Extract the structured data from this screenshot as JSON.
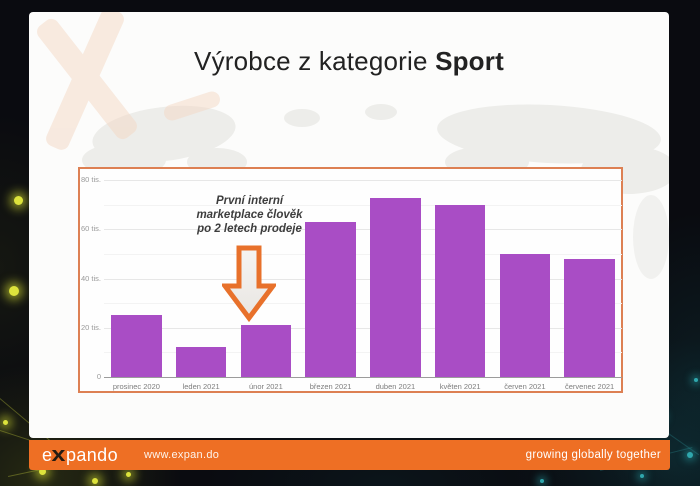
{
  "colors": {
    "footer_orange": "#ee6f24",
    "chart_border": "#dd8053",
    "bar": "#a94dc5",
    "arrow_outline": "#e8712b",
    "arrow_fill": "#f1efec"
  },
  "slide": {
    "title_regular": "Výrobce z kategorie ",
    "title_bold": "Sport"
  },
  "chart_data": {
    "type": "bar",
    "title": "Výrobce z kategorie Sport",
    "unit": "tis. (thousands)",
    "categories": [
      "prosinec 2020",
      "leden 2021",
      "únor 2021",
      "březen 2021",
      "duben 2021",
      "květen 2021",
      "červen 2021",
      "červenec 2021"
    ],
    "values": [
      25,
      12,
      21,
      63,
      72.5,
      70,
      50,
      48
    ],
    "ylim": [
      0,
      80
    ],
    "y_ticks": [
      {
        "value": 0,
        "label": "0"
      },
      {
        "value": 20,
        "label": "20 tis."
      },
      {
        "value": 40,
        "label": "40 tis."
      },
      {
        "value": 60,
        "label": "60 tis."
      },
      {
        "value": 80,
        "label": "80 tis."
      }
    ],
    "minor_gridlines": [
      10,
      30,
      50,
      70
    ],
    "grid": true,
    "legend": false,
    "annotation": {
      "lines": [
        "První interní",
        "marketplace člověk",
        "po 2 letech prodeje"
      ],
      "arrow": "down-block-arrow",
      "points_to": "únor 2021"
    }
  },
  "footer": {
    "logo_parts": {
      "pre": "e",
      "x": "x",
      "post": "pando"
    },
    "url": "www.expan.do",
    "tagline": "growing globally together"
  }
}
